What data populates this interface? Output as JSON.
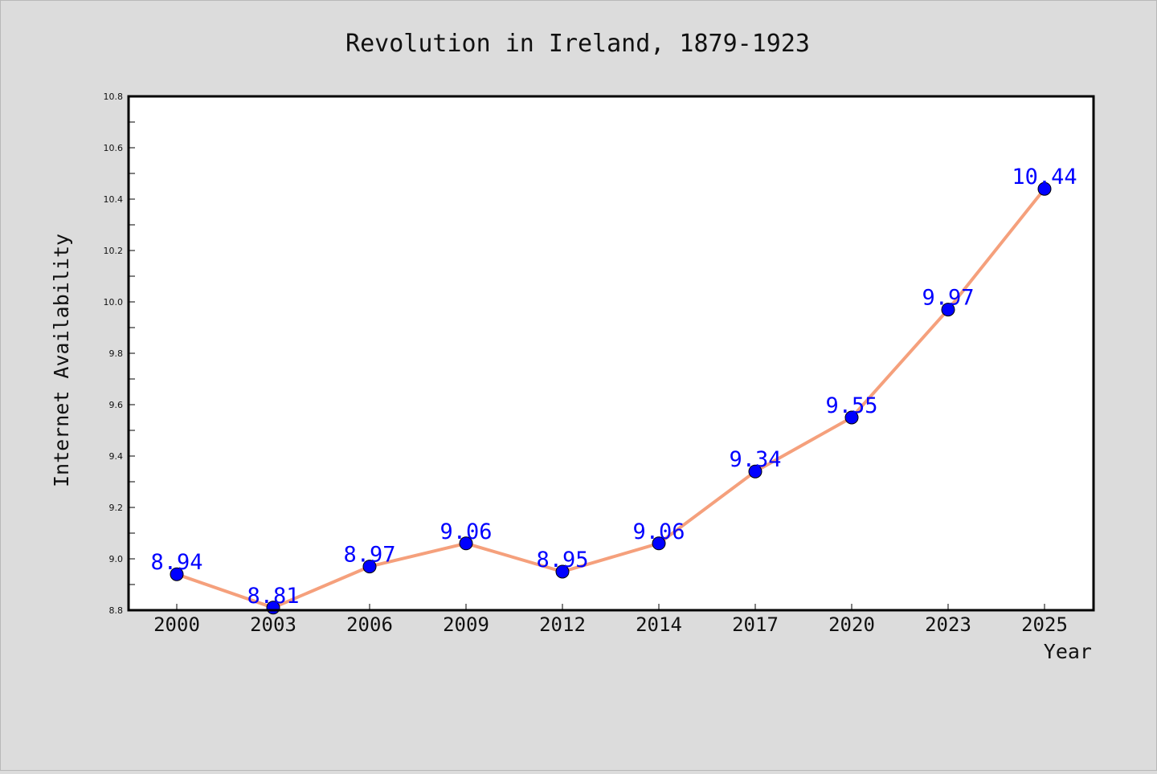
{
  "chart_data": {
    "type": "line",
    "title": "Revolution in Ireland, 1879-1923",
    "xlabel": "Year",
    "ylabel": "Internet Availability",
    "categories": [
      "2000",
      "2003",
      "2006",
      "2009",
      "2012",
      "2014",
      "2017",
      "2020",
      "2023",
      "2025"
    ],
    "series": [
      {
        "values": [
          8.94,
          8.81,
          8.97,
          9.06,
          8.95,
          9.06,
          9.34,
          9.55,
          9.97,
          10.44
        ],
        "line_color": "#f5a07c",
        "marker_color": "#0000ff"
      }
    ],
    "data_labels": [
      "8.94",
      "8.81",
      "8.97",
      "9.06",
      "8.95",
      "9.06",
      "9.34",
      "9.55",
      "9.97",
      "10.44"
    ],
    "ylim": [
      8.8,
      10.8
    ],
    "yticks": [
      "8.8",
      "9.0",
      "9.2",
      "9.4",
      "9.6",
      "9.8",
      "10.0",
      "10.2",
      "10.4",
      "10.6",
      "10.8"
    ],
    "grid": false,
    "legend": "none",
    "background_color": "#dcdcdc",
    "plot_background_color": "#ffffff",
    "data_label_color": "#0000ff"
  }
}
